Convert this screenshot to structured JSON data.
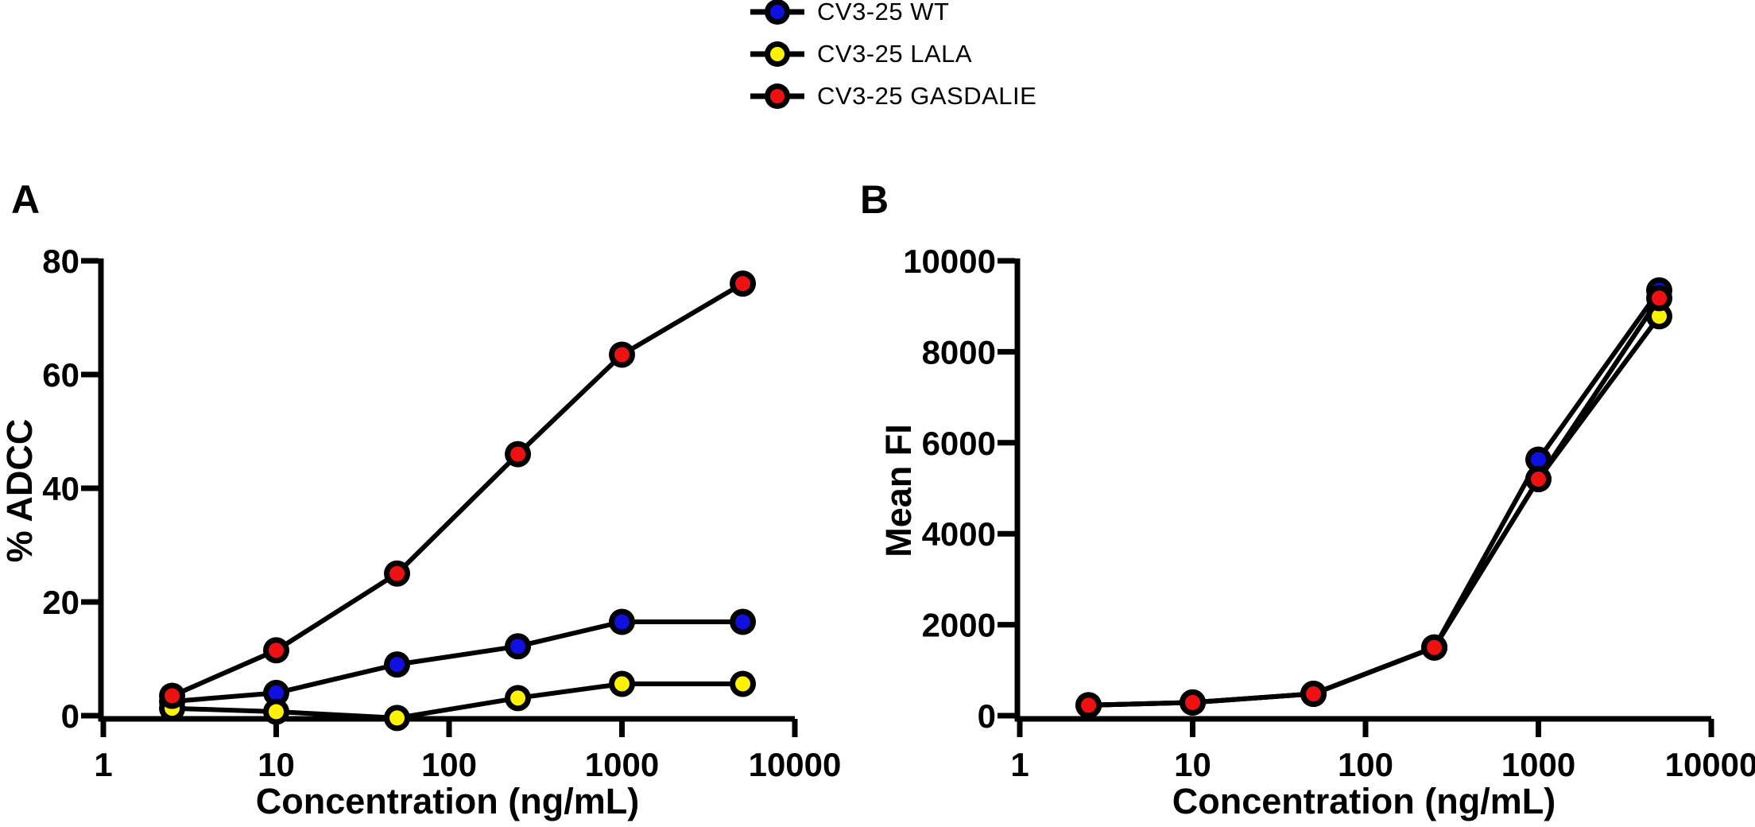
{
  "figure": {
    "background": "#ffffff",
    "text_color": "#000000",
    "legend": {
      "position": "top-center",
      "items": [
        {
          "label": "CV3-25 WT",
          "color": "#1010e0"
        },
        {
          "label": "CV3-25 LALA",
          "color": "#fff200"
        },
        {
          "label": "CV3-25 GASDALIE",
          "color": "#ee1111"
        }
      ]
    }
  },
  "chart_data": [
    {
      "panel": "A",
      "type": "line",
      "xscale": "log",
      "x": [
        2.5,
        10,
        50,
        250,
        1000,
        5000
      ],
      "xticks": [
        1,
        10,
        100,
        1000,
        10000
      ],
      "xtick_labels": [
        "1",
        "10",
        "100",
        "1000",
        "10000"
      ],
      "yticks": [
        0,
        20,
        40,
        60,
        80
      ],
      "ytick_labels": [
        "0",
        "20",
        "40",
        "60",
        "80"
      ],
      "xlim": [
        1,
        10000
      ],
      "ylim": [
        0,
        80
      ],
      "xlabel": "Concentration (ng/mL)",
      "ylabel": "% ADCC",
      "grid": false,
      "marker": "circle-black-ring",
      "series": [
        {
          "name": "CV3-25 WT",
          "color": "#1010e0",
          "values": [
            2.5,
            4.0,
            9.0,
            12.2,
            16.5,
            16.5
          ]
        },
        {
          "name": "CV3-25 LALA",
          "color": "#fff200",
          "values": [
            1.3,
            0.7,
            -0.4,
            3.1,
            5.6,
            5.6
          ]
        },
        {
          "name": "CV3-25 GASDALIE",
          "color": "#ee1111",
          "values": [
            3.5,
            11.5,
            25.0,
            46.0,
            63.5,
            76.0
          ]
        }
      ]
    },
    {
      "panel": "B",
      "type": "line",
      "xscale": "log",
      "x": [
        2.5,
        10,
        50,
        250,
        1000,
        5000
      ],
      "xticks": [
        1,
        10,
        100,
        1000,
        10000
      ],
      "xtick_labels": [
        "1",
        "10",
        "100",
        "1000",
        "10000"
      ],
      "yticks": [
        0,
        2000,
        4000,
        6000,
        8000,
        10000
      ],
      "ytick_labels": [
        "0",
        "2000",
        "4000",
        "6000",
        "8000",
        "10000"
      ],
      "xlim": [
        1,
        10000
      ],
      "ylim": [
        0,
        10000
      ],
      "xlabel": "Concentration (ng/mL)",
      "ylabel": "Mean FI",
      "grid": false,
      "marker": "circle-black-ring",
      "series": [
        {
          "name": "CV3-25 WT",
          "color": "#1010e0",
          "values": [
            230,
            290,
            480,
            1500,
            5630,
            9350
          ]
        },
        {
          "name": "CV3-25 LALA",
          "color": "#fff200",
          "values": [
            230,
            290,
            480,
            1500,
            5200,
            8780
          ]
        },
        {
          "name": "CV3-25 GASDALIE",
          "color": "#ee1111",
          "values": [
            230,
            290,
            480,
            1500,
            5200,
            9180
          ]
        }
      ]
    }
  ]
}
